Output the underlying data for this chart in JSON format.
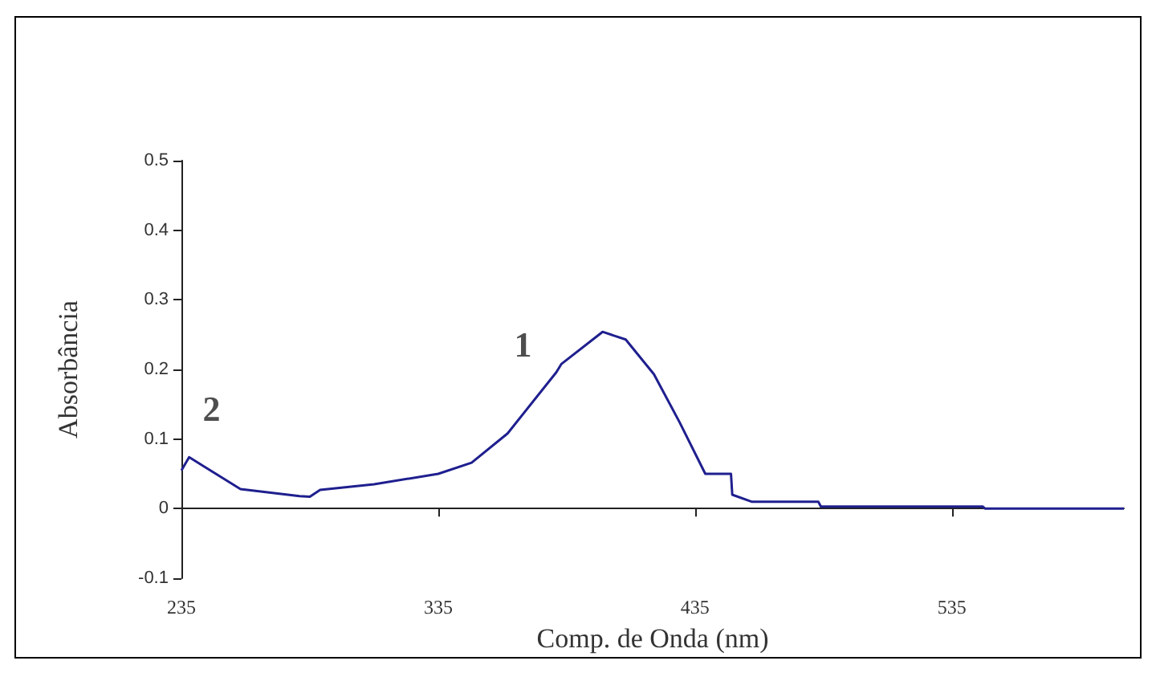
{
  "chart_data": {
    "type": "line",
    "xlabel": "Comp. de Onda (nm)",
    "ylabel": "Absorbância",
    "xlim": [
      235,
      602
    ],
    "xticks": [
      235,
      335,
      435,
      535
    ],
    "ylim": [
      -0.1,
      0.5
    ],
    "yticks": [
      -0.1,
      0,
      0.1,
      0.2,
      0.3,
      0.4,
      0.5
    ],
    "marker": "none",
    "line_style": "solid",
    "annotations": [
      {
        "text": "1",
        "x": 383,
        "y": 0.208
      },
      {
        "text": "2",
        "x": 238,
        "y": 0.074
      }
    ],
    "series": [
      {
        "color": "#1f1f8f",
        "x": [
          235,
          238,
          258,
          281,
          285,
          289,
          310,
          335,
          348,
          362,
          381,
          383,
          399,
          408,
          419,
          429,
          439,
          449,
          449.5,
          457,
          483,
          484,
          547,
          548,
          602
        ],
        "values": [
          0.055,
          0.074,
          0.028,
          0.018,
          0.017,
          0.027,
          0.035,
          0.05,
          0.066,
          0.108,
          0.196,
          0.208,
          0.254,
          0.243,
          0.193,
          0.124,
          0.05,
          0.05,
          0.02,
          0.01,
          0.01,
          0.003,
          0.003,
          0,
          0
        ]
      }
    ]
  }
}
